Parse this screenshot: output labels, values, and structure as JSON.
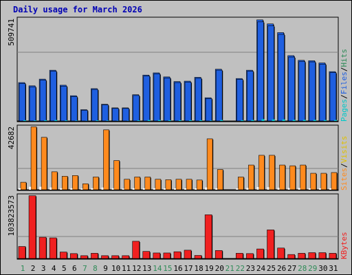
{
  "title": "Daily usage for March 2026",
  "colors": {
    "frame_bg": "#c0c0c0",
    "title": "#0000b4",
    "hits": "#1f5fe0",
    "files": "#1f5fe0",
    "pages": "#00c8c8",
    "visits": "#ff8a1e",
    "sites": "#ff8a1e",
    "kbytes": "#f02020",
    "weekday_label": "#000000",
    "weekend_label": "#2e8b57"
  },
  "chart_data": [
    {
      "type": "bar",
      "panel": "hits",
      "ymax_label": "509741",
      "ylim": [
        0,
        509741
      ],
      "legend": [
        {
          "text": "Pages",
          "color": "#00c8c8"
        },
        {
          "text": "/",
          "color": "#000000"
        },
        {
          "text": "Files",
          "color": "#1f5fe0"
        },
        {
          "text": "/",
          "color": "#000000"
        },
        {
          "text": "Hits",
          "color": "#2e8b57"
        }
      ],
      "categories": [
        "1",
        "2",
        "3",
        "4",
        "5",
        "6",
        "7",
        "8",
        "9",
        "10",
        "11",
        "12",
        "13",
        "14",
        "15",
        "16",
        "17",
        "18",
        "19",
        "20",
        "21",
        "22",
        "23",
        "24",
        "25",
        "26",
        "27",
        "28",
        "29",
        "30",
        "31"
      ],
      "series": [
        {
          "name": "Hits",
          "values": [
            190000,
            174000,
            207000,
            251000,
            177000,
            125000,
            56000,
            160000,
            83000,
            65000,
            65000,
            130000,
            227000,
            238000,
            218000,
            195000,
            197000,
            216000,
            115000,
            256000,
            0,
            210000,
            251000,
            500000,
            480000,
            437000,
            323000,
            300000,
            298000,
            287000,
            244000
          ]
        },
        {
          "name": "Files",
          "values": [
            185000,
            169000,
            202000,
            246000,
            172000,
            120000,
            53000,
            156000,
            80000,
            62000,
            62000,
            126000,
            222000,
            233000,
            213000,
            190000,
            192000,
            211000,
            111000,
            251000,
            0,
            205000,
            246000,
            490000,
            470000,
            428000,
            316000,
            294000,
            292000,
            281000,
            239000
          ]
        },
        {
          "name": "Pages",
          "values": [
            4000,
            3000,
            4000,
            5000,
            3000,
            2000,
            1000,
            3000,
            2000,
            1000,
            1000,
            3000,
            5000,
            5000,
            4000,
            4000,
            4000,
            4000,
            2000,
            5000,
            0,
            4000,
            5000,
            9000,
            8000,
            8000,
            6000,
            6000,
            6000,
            5000,
            5000
          ]
        }
      ]
    },
    {
      "type": "bar",
      "panel": "visits",
      "ymax_label": "42682",
      "ylim": [
        0,
        42682
      ],
      "legend": [
        {
          "text": "Sites",
          "color": "#ff8a1e"
        },
        {
          "text": "/",
          "color": "#000000"
        },
        {
          "text": "Visits",
          "color": "#e0c000"
        }
      ],
      "categories": [
        "1",
        "2",
        "3",
        "4",
        "5",
        "6",
        "7",
        "8",
        "9",
        "10",
        "11",
        "12",
        "13",
        "14",
        "15",
        "16",
        "17",
        "18",
        "19",
        "20",
        "21",
        "22",
        "23",
        "24",
        "25",
        "26",
        "27",
        "28",
        "29",
        "30",
        "31"
      ],
      "series": [
        {
          "name": "Visits",
          "values": [
            5000,
            42000,
            35000,
            12000,
            9000,
            9500,
            4000,
            8500,
            40000,
            19500,
            7000,
            8500,
            8500,
            7000,
            6700,
            7000,
            7000,
            6500,
            34000,
            13500,
            0,
            8500,
            16500,
            23000,
            23000,
            16500,
            16000,
            16500,
            11000,
            11000,
            11500
          ]
        },
        {
          "name": "Sites",
          "values": [
            1000,
            2000,
            2000,
            1500,
            1000,
            1000,
            800,
            1000,
            1500,
            1000,
            800,
            1000,
            1000,
            1000,
            900,
            900,
            900,
            900,
            1500,
            1000,
            0,
            900,
            1200,
            1800,
            1700,
            1300,
            1200,
            1200,
            1000,
            1000,
            1000
          ]
        }
      ]
    },
    {
      "type": "bar",
      "panel": "kbytes",
      "ymax_label": "103823573",
      "ylim": [
        0,
        103823573
      ],
      "legend": [
        {
          "text": "KBytes",
          "color": "#f02020"
        }
      ],
      "categories": [
        "1",
        "2",
        "3",
        "4",
        "5",
        "6",
        "7",
        "8",
        "9",
        "10",
        "11",
        "12",
        "13",
        "14",
        "15",
        "16",
        "17",
        "18",
        "19",
        "20",
        "21",
        "22",
        "23",
        "24",
        "25",
        "26",
        "27",
        "28",
        "29",
        "30",
        "31"
      ],
      "series": [
        {
          "name": "KBytes",
          "values": [
            19500000,
            102000000,
            34500000,
            33500000,
            10500000,
            8000000,
            4600000,
            8500000,
            4600000,
            4600000,
            4600000,
            28000000,
            11500000,
            9000000,
            9000000,
            11000000,
            13500000,
            5000000,
            71000000,
            13000000,
            0,
            8500000,
            8000000,
            15500000,
            46500000,
            17000000,
            6500000,
            8500000,
            9500000,
            9500000,
            8500000
          ]
        }
      ]
    }
  ],
  "x_axis": {
    "labels": [
      "1",
      "2",
      "3",
      "4",
      "5",
      "6",
      "7",
      "8",
      "9",
      "10",
      "11",
      "12",
      "13",
      "14",
      "15",
      "16",
      "17",
      "18",
      "19",
      "20",
      "21",
      "22",
      "23",
      "24",
      "25",
      "26",
      "27",
      "28",
      "29",
      "30",
      "31"
    ],
    "weekend": [
      1,
      7,
      8,
      14,
      15,
      21,
      22,
      28,
      29
    ]
  }
}
